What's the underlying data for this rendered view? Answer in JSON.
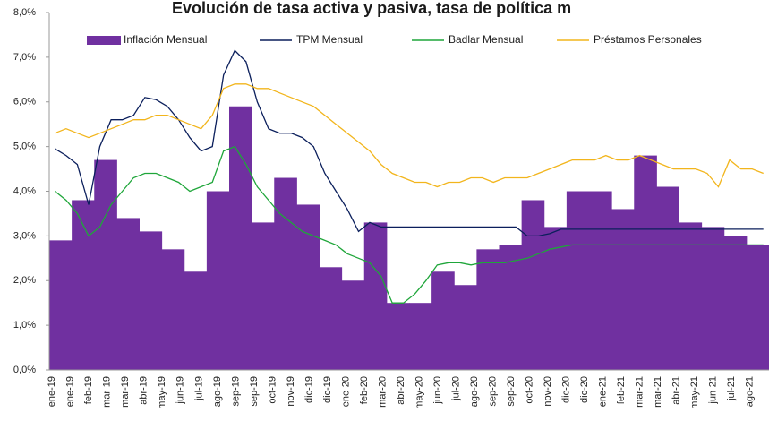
{
  "chart_data": {
    "type": "bar_line",
    "title": "Evolución de tasa activa y pasiva, tasa de política m",
    "x_labels": [
      "ene-19",
      "ene-19",
      "feb-19",
      "mar-19",
      "mar-19",
      "abr-19",
      "may-19",
      "jun-19",
      "jul-19",
      "ago-19",
      "sep-19",
      "sep-19",
      "oct-19",
      "nov-19",
      "dic-19",
      "dic-19",
      "ene-20",
      "feb-20",
      "mar-20",
      "abr-20",
      "may-20",
      "jun-20",
      "jul-20",
      "ago-20",
      "sep-20",
      "sep-20",
      "oct-20",
      "nov-20",
      "dic-20",
      "dic-20",
      "ene-21",
      "feb-21",
      "mar-21",
      "mar-21",
      "abr-21",
      "may-21",
      "jun-21",
      "jul-21",
      "ago-21"
    ],
    "ylim": [
      0,
      8
    ],
    "yticks": [
      {
        "value": 0,
        "label": "0,0%"
      },
      {
        "value": 1,
        "label": "1,0%"
      },
      {
        "value": 2,
        "label": "2,0%"
      },
      {
        "value": 3,
        "label": "3,0%"
      },
      {
        "value": 4,
        "label": "4,0%"
      },
      {
        "value": 5,
        "label": "5,0%"
      },
      {
        "value": 6,
        "label": "6,0%"
      },
      {
        "value": 7,
        "label": "7,0%"
      },
      {
        "value": 8,
        "label": "8,0%"
      }
    ],
    "series": [
      {
        "name": "Inflación Mensual",
        "kind": "bar",
        "color": "#7030a0",
        "values": [
          2.9,
          3.8,
          4.7,
          3.4,
          3.1,
          2.7,
          2.2,
          4.0,
          5.9,
          3.3,
          4.3,
          3.7,
          2.3,
          2.0,
          3.3,
          1.5,
          1.5,
          2.2,
          1.9,
          2.7,
          2.8,
          3.8,
          3.2,
          4.0,
          4.0,
          3.6,
          4.8,
          4.1,
          3.3,
          3.2,
          3.0,
          2.8
        ]
      },
      {
        "name": "TPM Mensual",
        "kind": "line",
        "color": "#0b1f5c",
        "values": [
          4.95,
          4.8,
          4.6,
          3.7,
          5.0,
          5.6,
          5.6,
          5.7,
          6.1,
          6.05,
          5.9,
          5.6,
          5.2,
          4.9,
          5.0,
          6.6,
          7.15,
          6.9,
          6.0,
          5.4,
          5.3,
          5.3,
          5.2,
          5.0,
          4.4,
          4.0,
          3.6,
          3.1,
          3.3,
          3.2,
          3.2,
          3.2,
          3.2,
          3.2,
          3.2,
          3.2,
          3.2,
          3.2,
          3.2,
          3.2,
          3.2,
          3.2,
          3.0,
          3.0,
          3.05,
          3.15,
          3.15,
          3.15,
          3.15,
          3.15,
          3.15,
          3.15,
          3.15,
          3.15,
          3.15,
          3.15,
          3.15,
          3.15,
          3.15,
          3.15,
          3.15,
          3.15,
          3.15,
          3.15
        ]
      },
      {
        "name": "Badlar Mensual",
        "kind": "line",
        "color": "#1fa63a",
        "values": [
          4.0,
          3.8,
          3.5,
          3.0,
          3.2,
          3.7,
          4.0,
          4.3,
          4.4,
          4.4,
          4.3,
          4.2,
          4.0,
          4.1,
          4.2,
          4.9,
          5.0,
          4.6,
          4.1,
          3.8,
          3.5,
          3.3,
          3.1,
          3.0,
          2.9,
          2.8,
          2.6,
          2.5,
          2.4,
          2.1,
          1.5,
          1.5,
          1.7,
          2.0,
          2.35,
          2.4,
          2.4,
          2.35,
          2.4,
          2.4,
          2.4,
          2.45,
          2.5,
          2.6,
          2.7,
          2.75,
          2.8,
          2.8,
          2.8,
          2.8,
          2.8,
          2.8,
          2.8,
          2.8,
          2.8,
          2.8,
          2.8,
          2.8,
          2.8,
          2.8,
          2.8,
          2.8,
          2.8,
          2.8
        ]
      },
      {
        "name": "Préstamos Personales",
        "kind": "line",
        "color": "#f2b51c",
        "values": [
          5.3,
          5.4,
          5.3,
          5.2,
          5.3,
          5.4,
          5.5,
          5.6,
          5.6,
          5.7,
          5.7,
          5.6,
          5.5,
          5.4,
          5.7,
          6.3,
          6.4,
          6.4,
          6.3,
          6.3,
          6.2,
          6.1,
          6.0,
          5.9,
          5.7,
          5.5,
          5.3,
          5.1,
          4.9,
          4.6,
          4.4,
          4.3,
          4.2,
          4.2,
          4.1,
          4.2,
          4.2,
          4.3,
          4.3,
          4.2,
          4.3,
          4.3,
          4.3,
          4.4,
          4.5,
          4.6,
          4.7,
          4.7,
          4.7,
          4.8,
          4.7,
          4.7,
          4.8,
          4.7,
          4.6,
          4.5,
          4.5,
          4.5,
          4.4,
          4.1,
          4.7,
          4.5,
          4.5,
          4.4
        ]
      }
    ]
  }
}
